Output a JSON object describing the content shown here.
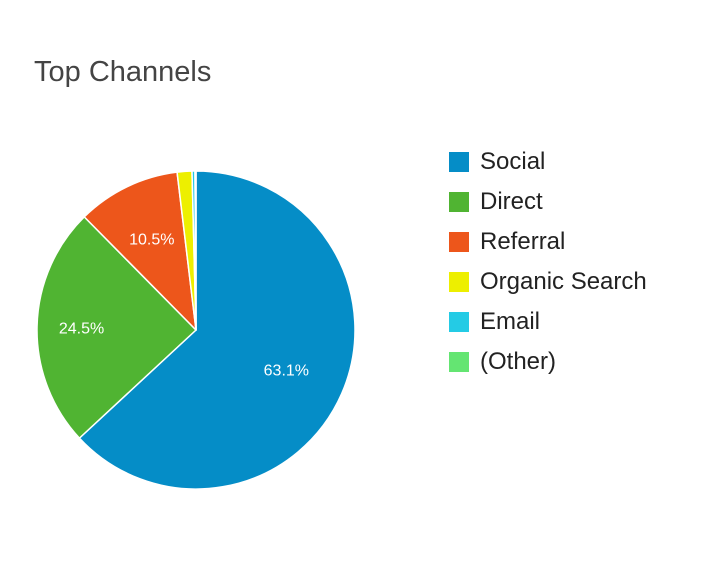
{
  "chart_data": {
    "type": "pie",
    "title": "Top Channels",
    "slices": [
      {
        "name": "Social",
        "value": 63.1,
        "label": "63.1%",
        "color": "#058dc7"
      },
      {
        "name": "Direct",
        "value": 24.5,
        "label": "24.5%",
        "color": "#50b432"
      },
      {
        "name": "Referral",
        "value": 10.5,
        "label": "10.5%",
        "color": "#ed561b"
      },
      {
        "name": "Organic Search",
        "value": 1.5,
        "label": "",
        "color": "#edef00"
      },
      {
        "name": "Email",
        "value": 0.3,
        "label": "",
        "color": "#24cbe5"
      },
      {
        "name": "(Other)",
        "value": 0.1,
        "label": "",
        "color": "#64e572"
      }
    ],
    "legend_position": "right",
    "start_angle": "top",
    "direction": "clockwise"
  }
}
